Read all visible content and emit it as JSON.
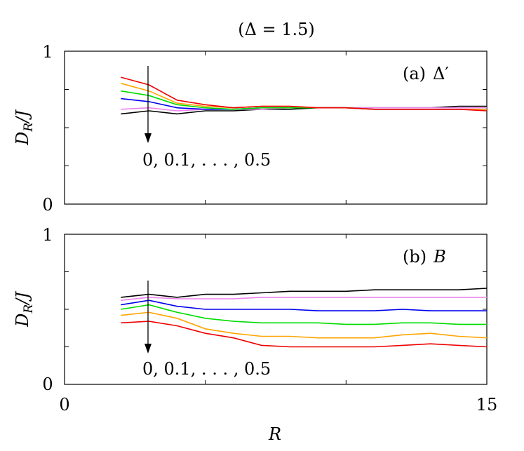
{
  "figure": {
    "title": "(Δ = 1.5)",
    "xlabel": "R",
    "ylabel_main": "D",
    "ylabel_sub": "R",
    "ylabel_tail": "/J"
  },
  "colors": [
    "#000000",
    "#ee82ee",
    "#0000ee",
    "#00dd00",
    "#ffa500",
    "#ee0000"
  ],
  "chart_data": [
    {
      "type": "line",
      "panel_label_prefix": "(a)",
      "panel_label_symbol": "Δ′",
      "arrow_label": "0, 0.1, . . . , 0.5",
      "xlim": [
        0,
        15
      ],
      "ylim": [
        0,
        1
      ],
      "y_ticks": [
        "0",
        "1"
      ],
      "x_ticks": [],
      "x": [
        2,
        3,
        4,
        5,
        6,
        7,
        8,
        9,
        10,
        11,
        12,
        13,
        14,
        15
      ],
      "series": [
        {
          "values": [
            0.59,
            0.61,
            0.59,
            0.61,
            0.61,
            0.62,
            0.62,
            0.63,
            0.63,
            0.63,
            0.63,
            0.63,
            0.64,
            0.64
          ]
        },
        {
          "values": [
            0.62,
            0.63,
            0.61,
            0.62,
            0.62,
            0.62,
            0.63,
            0.63,
            0.63,
            0.63,
            0.63,
            0.63,
            0.63,
            0.63
          ]
        },
        {
          "values": [
            0.69,
            0.67,
            0.63,
            0.62,
            0.62,
            0.63,
            0.63,
            0.63,
            0.63,
            0.62,
            0.62,
            0.62,
            0.62,
            0.62
          ]
        },
        {
          "values": [
            0.74,
            0.71,
            0.65,
            0.63,
            0.62,
            0.63,
            0.63,
            0.63,
            0.63,
            0.62,
            0.62,
            0.62,
            0.62,
            0.62
          ]
        },
        {
          "values": [
            0.79,
            0.74,
            0.66,
            0.64,
            0.63,
            0.64,
            0.64,
            0.63,
            0.63,
            0.62,
            0.62,
            0.62,
            0.62,
            0.62
          ]
        },
        {
          "values": [
            0.83,
            0.78,
            0.68,
            0.65,
            0.63,
            0.64,
            0.64,
            0.63,
            0.63,
            0.62,
            0.62,
            0.62,
            0.62,
            0.61
          ]
        }
      ]
    },
    {
      "type": "line",
      "panel_label_prefix": "(b)",
      "panel_label_symbol": "B",
      "arrow_label": "0, 0.1, . . . , 0.5",
      "xlim": [
        0,
        15
      ],
      "ylim": [
        0,
        1
      ],
      "y_ticks": [
        "0",
        "1"
      ],
      "x_ticks": [
        "0",
        "15"
      ],
      "x": [
        2,
        3,
        4,
        5,
        6,
        7,
        8,
        9,
        10,
        11,
        12,
        13,
        14,
        15
      ],
      "series": [
        {
          "values": [
            0.58,
            0.6,
            0.58,
            0.6,
            0.6,
            0.61,
            0.62,
            0.62,
            0.62,
            0.63,
            0.63,
            0.63,
            0.63,
            0.64
          ]
        },
        {
          "values": [
            0.56,
            0.58,
            0.57,
            0.57,
            0.57,
            0.58,
            0.58,
            0.58,
            0.58,
            0.58,
            0.58,
            0.58,
            0.58,
            0.58
          ]
        },
        {
          "values": [
            0.53,
            0.56,
            0.52,
            0.5,
            0.5,
            0.5,
            0.5,
            0.49,
            0.49,
            0.49,
            0.5,
            0.49,
            0.49,
            0.49
          ]
        },
        {
          "values": [
            0.5,
            0.53,
            0.48,
            0.44,
            0.42,
            0.41,
            0.41,
            0.41,
            0.4,
            0.4,
            0.41,
            0.41,
            0.4,
            0.4
          ]
        },
        {
          "values": [
            0.46,
            0.48,
            0.44,
            0.37,
            0.34,
            0.32,
            0.32,
            0.31,
            0.31,
            0.31,
            0.33,
            0.34,
            0.32,
            0.31
          ]
        },
        {
          "values": [
            0.41,
            0.42,
            0.39,
            0.34,
            0.31,
            0.26,
            0.25,
            0.25,
            0.25,
            0.25,
            0.26,
            0.27,
            0.26,
            0.25
          ]
        }
      ]
    }
  ]
}
